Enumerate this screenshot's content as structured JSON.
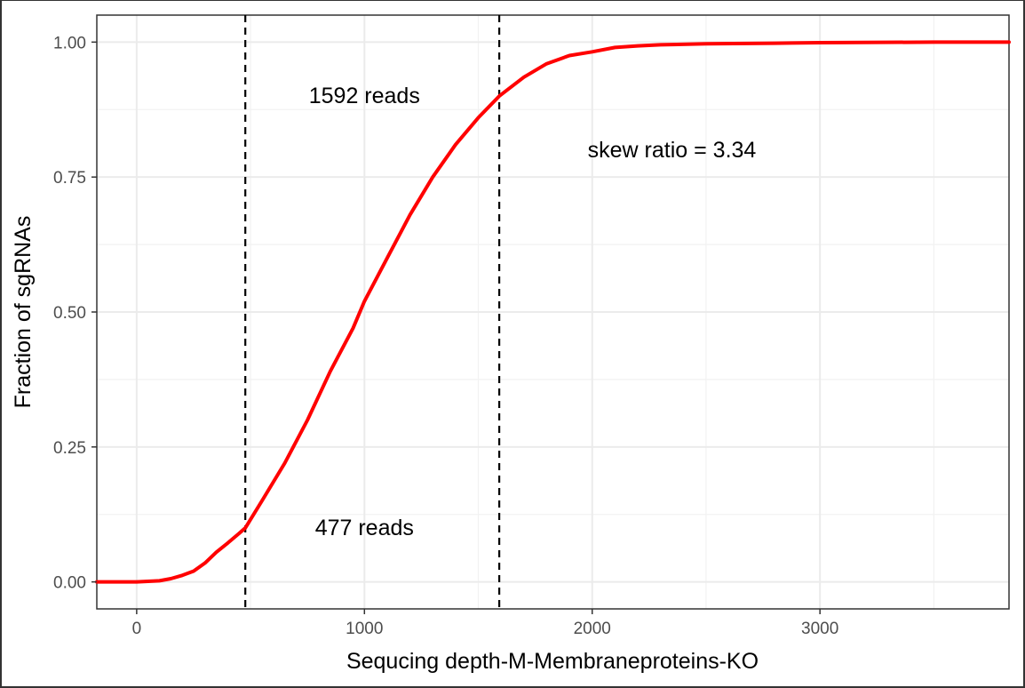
{
  "chart_data": {
    "type": "line",
    "title": "",
    "xlabel": "Sequcing depth-M-Membraneproteins-KO",
    "ylabel": "Fraction of sgRNAs",
    "xlim": [
      -175,
      3830
    ],
    "ylim": [
      -0.05,
      1.05
    ],
    "xticks": [
      0,
      1000,
      2000,
      3000
    ],
    "xtick_labels": [
      "0",
      "1000",
      "2000",
      "3000"
    ],
    "yticks": [
      0,
      0.25,
      0.5,
      0.75,
      1.0
    ],
    "ytick_labels": [
      "0.00",
      "0.25",
      "0.50",
      "0.75",
      "1.00"
    ],
    "grid": true,
    "legend": "none",
    "line_color": "#ff0000",
    "series": [
      {
        "x": [
          -175,
          0,
          100,
          150,
          200,
          250,
          300,
          350,
          400,
          450,
          477,
          550,
          650,
          750,
          850,
          950,
          1000,
          1100,
          1200,
          1300,
          1400,
          1500,
          1592,
          1700,
          1800,
          1900,
          2000,
          2100,
          2200,
          2300,
          2500,
          2800,
          3000,
          3500,
          3830
        ],
        "y": [
          0.0,
          0.0,
          0.002,
          0.006,
          0.012,
          0.02,
          0.035,
          0.055,
          0.072,
          0.09,
          0.1,
          0.15,
          0.22,
          0.3,
          0.39,
          0.47,
          0.52,
          0.6,
          0.68,
          0.75,
          0.81,
          0.86,
          0.9,
          0.935,
          0.96,
          0.975,
          0.982,
          0.99,
          0.993,
          0.995,
          0.997,
          0.998,
          0.999,
          1.0,
          1.0
        ]
      }
    ],
    "vlines": [
      477,
      1592
    ],
    "annotations": [
      {
        "text": "1592 reads",
        "x": 1000,
        "y": 0.9
      },
      {
        "text": "skew ratio = 3.34",
        "x": 2350,
        "y": 0.8
      },
      {
        "text": "477 reads",
        "x": 1000,
        "y": 0.1
      }
    ]
  }
}
